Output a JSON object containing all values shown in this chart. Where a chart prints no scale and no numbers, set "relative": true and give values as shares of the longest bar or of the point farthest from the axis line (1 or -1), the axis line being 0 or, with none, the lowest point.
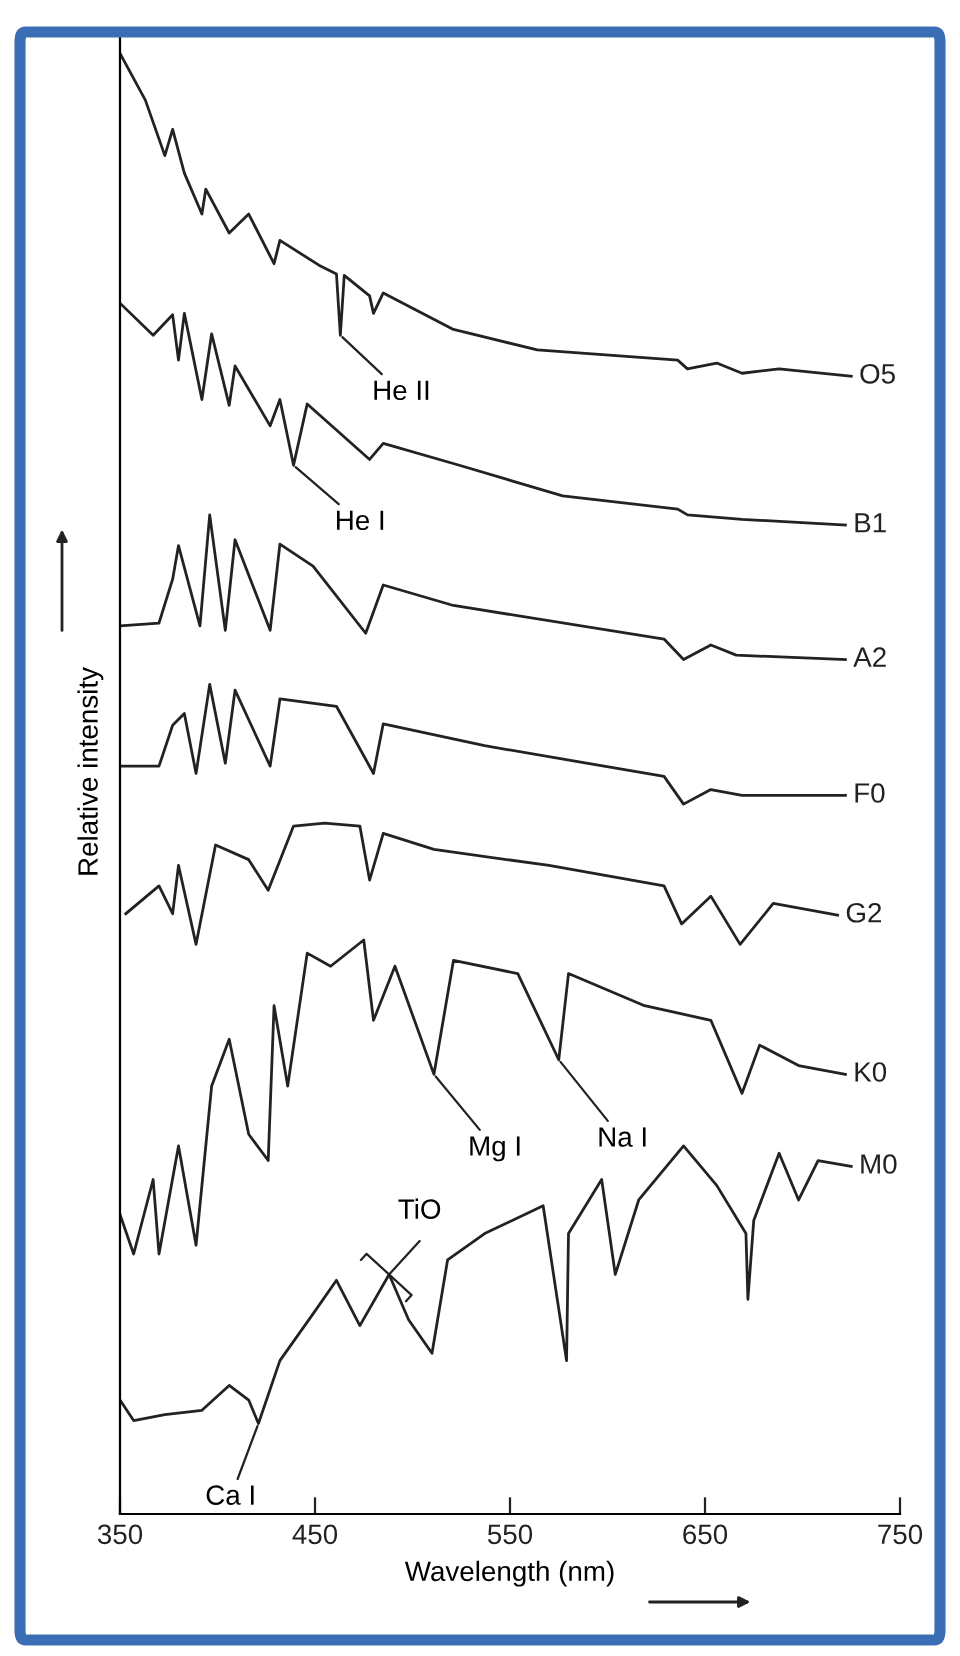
{
  "chart_data": {
    "type": "line",
    "relative": true,
    "xlabel": "Wavelength (nm)",
    "ylabel": "Relative intensity",
    "xlim": [
      350,
      750
    ],
    "xticks": [
      350,
      450,
      550,
      650,
      750
    ],
    "grid": false,
    "legend": false,
    "marker": "none",
    "line_style": "solid",
    "series": [
      {
        "name": "O5",
        "color": "#222222",
        "x": [
          350,
          363,
          373,
          377,
          383,
          392,
          394,
          406,
          416,
          429,
          432,
          452,
          461,
          463,
          465,
          478,
          480,
          485,
          521,
          564,
          636,
          641,
          656,
          669,
          688,
          725
        ],
        "values": [
          1.0,
          0.968,
          0.93,
          0.948,
          0.918,
          0.89,
          0.907,
          0.877,
          0.89,
          0.856,
          0.872,
          0.855,
          0.849,
          0.807,
          0.848,
          0.834,
          0.822,
          0.836,
          0.811,
          0.797,
          0.79,
          0.784,
          0.788,
          0.781,
          0.784,
          0.779
        ]
      },
      {
        "name": "B1",
        "color": "#222222",
        "x": [
          350,
          367,
          377,
          380,
          383,
          392,
          397,
          406,
          409,
          427,
          432,
          439,
          446,
          478,
          485,
          524,
          577,
          636,
          641,
          669,
          722
        ],
        "values": [
          0.829,
          0.807,
          0.821,
          0.79,
          0.822,
          0.763,
          0.808,
          0.759,
          0.786,
          0.745,
          0.763,
          0.718,
          0.76,
          0.722,
          0.733,
          0.718,
          0.697,
          0.688,
          0.684,
          0.681,
          0.677
        ]
      },
      {
        "name": "A2",
        "color": "#222222",
        "x": [
          350,
          370,
          377,
          380,
          391,
          396,
          404,
          409,
          427,
          432,
          449,
          476,
          485,
          521,
          629,
          639,
          653,
          666,
          722
        ],
        "values": [
          0.608,
          0.61,
          0.64,
          0.663,
          0.608,
          0.684,
          0.605,
          0.667,
          0.605,
          0.664,
          0.649,
          0.603,
          0.636,
          0.622,
          0.599,
          0.585,
          0.595,
          0.588,
          0.585
        ]
      },
      {
        "name": "F0",
        "color": "#222222",
        "x": [
          350,
          370,
          377,
          383,
          389,
          396,
          404,
          409,
          427,
          432,
          461,
          480,
          485,
          537,
          629,
          639,
          653,
          669,
          722
        ],
        "values": [
          0.512,
          0.512,
          0.54,
          0.548,
          0.507,
          0.568,
          0.514,
          0.564,
          0.512,
          0.558,
          0.553,
          0.507,
          0.541,
          0.526,
          0.505,
          0.486,
          0.496,
          0.492,
          0.492
        ]
      },
      {
        "name": "G2",
        "color": "#222222",
        "x": [
          353,
          370,
          377,
          380,
          389,
          399,
          416,
          426,
          439,
          455,
          473,
          478,
          485,
          511,
          570,
          629,
          638,
          653,
          668,
          685,
          718
        ],
        "values": [
          0.411,
          0.43,
          0.411,
          0.444,
          0.39,
          0.458,
          0.448,
          0.427,
          0.471,
          0.473,
          0.471,
          0.434,
          0.466,
          0.455,
          0.444,
          0.43,
          0.404,
          0.423,
          0.39,
          0.418,
          0.41
        ]
      },
      {
        "name": "K0",
        "color": "#222222",
        "x": [
          350,
          357,
          367,
          370,
          380,
          389,
          397,
          406,
          416,
          426,
          429,
          436,
          446,
          458,
          475,
          480,
          491,
          511,
          521,
          554,
          575,
          580,
          619,
          653,
          669,
          678,
          698,
          722
        ],
        "values": [
          0.205,
          0.178,
          0.229,
          0.178,
          0.252,
          0.184,
          0.293,
          0.325,
          0.26,
          0.242,
          0.348,
          0.293,
          0.384,
          0.375,
          0.393,
          0.338,
          0.375,
          0.301,
          0.379,
          0.37,
          0.311,
          0.37,
          0.348,
          0.338,
          0.288,
          0.321,
          0.307,
          0.301
        ]
      },
      {
        "name": "M0",
        "color": "#222222",
        "x": [
          350,
          357,
          373,
          392,
          406,
          416,
          421,
          432,
          449,
          461,
          473,
          488,
          498,
          510,
          518,
          537,
          567,
          579,
          580,
          597,
          604,
          616,
          639,
          656,
          671,
          672,
          675,
          688,
          698,
          708,
          725
        ],
        "values": [
          0.078,
          0.064,
          0.068,
          0.071,
          0.088,
          0.078,
          0.062,
          0.105,
          0.137,
          0.16,
          0.129,
          0.164,
          0.133,
          0.11,
          0.174,
          0.192,
          0.211,
          0.105,
          0.192,
          0.229,
          0.164,
          0.215,
          0.252,
          0.225,
          0.192,
          0.147,
          0.201,
          0.247,
          0.215,
          0.242,
          0.238
        ]
      }
    ],
    "annotations": [
      {
        "text": "He II",
        "x": 463,
        "y": 0.807
      },
      {
        "text": "He I",
        "x": 439,
        "y": 0.718
      },
      {
        "text": "Mg I",
        "x": 511,
        "y": 0.301
      },
      {
        "text": "Na I",
        "x": 575,
        "y": 0.311
      },
      {
        "text": "TiO",
        "x": 488,
        "y": 0.164
      },
      {
        "text": "Ca I",
        "x": 421,
        "y": 0.062
      }
    ]
  }
}
